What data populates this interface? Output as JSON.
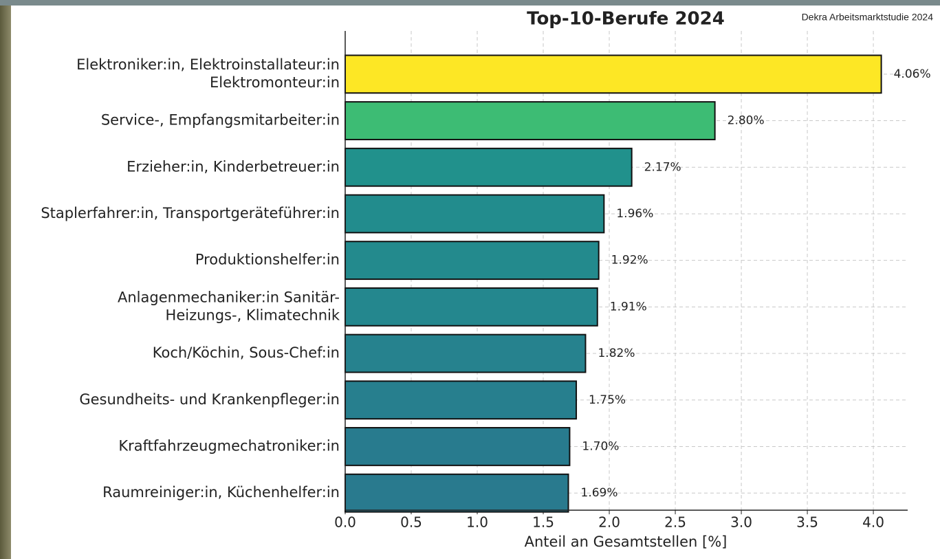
{
  "chart_data": {
    "type": "barh",
    "title": "Top-10-Berufe 2024",
    "source": "Dekra Arbeitsmarktstudie 2024",
    "xlabel": "Anteil an Gesamtstellen [%]",
    "categories": [
      "Elektroniker:in, Elektroinstallateur:in\nElektromonteur:in",
      "Service-, Empfangsmitarbeiter:in",
      "Erzieher:in, Kinderbetreuer:in",
      "Staplerfahrer:in, Transportgeräteführer:in",
      "Produktionshelfer:in",
      "Anlagenmechaniker:in Sanitär-\nHeizungs-, Klimatechnik",
      "Koch/Köchin, Sous-Chef:in",
      "Gesundheits- und Krankenpfleger:in",
      "Kraftfahrzeugmechatroniker:in",
      "Raumreiniger:in, Küchenhelfer:in"
    ],
    "values": [
      4.06,
      2.8,
      2.17,
      1.96,
      1.92,
      1.91,
      1.82,
      1.75,
      1.7,
      1.69
    ],
    "value_labels": [
      "4.06%",
      "2.80%",
      "2.17%",
      "1.96%",
      "1.92%",
      "1.91%",
      "1.82%",
      "1.75%",
      "1.70%",
      "1.69%"
    ],
    "colors": [
      "#fde725",
      "#3dbc74",
      "#21918c",
      "#228c8d",
      "#238a8d",
      "#24878e",
      "#26828e",
      "#277f8e",
      "#287b8e",
      "#297a8e"
    ],
    "xlim": [
      0,
      4.26
    ],
    "xticks": [
      {
        "value": 0,
        "label": "0.0"
      },
      {
        "value": 0.5,
        "label": "0.5"
      },
      {
        "value": 1,
        "label": "1.0"
      },
      {
        "value": 1.5,
        "label": "1.5"
      },
      {
        "value": 2,
        "label": "2.0"
      },
      {
        "value": 2.5,
        "label": "2.5"
      },
      {
        "value": 3,
        "label": "3.0"
      },
      {
        "value": 3.5,
        "label": "3.5"
      },
      {
        "value": 4,
        "label": "4.0"
      }
    ],
    "grid": true
  }
}
